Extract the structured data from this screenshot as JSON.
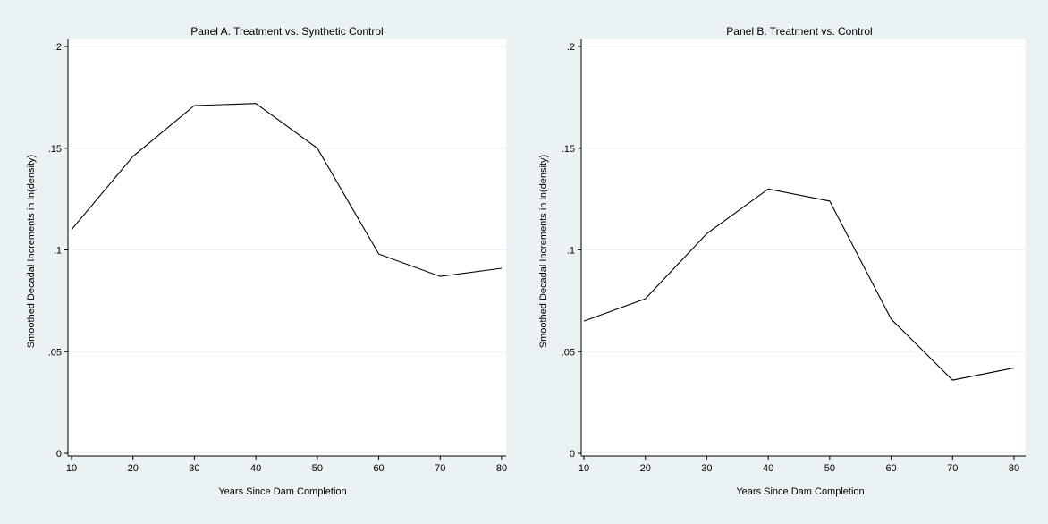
{
  "chart_data": [
    {
      "type": "line",
      "title": "Panel A. Treatment vs. Synthetic Control",
      "xlabel": "Years Since Dam Completion",
      "ylabel": "Smoothed Decadal Increments in ln(density)",
      "x": [
        10,
        20,
        30,
        40,
        50,
        60,
        70,
        80
      ],
      "series": [
        {
          "values": [
            0.11,
            0.146,
            0.171,
            0.172,
            0.15,
            0.098,
            0.087,
            0.091
          ]
        }
      ],
      "xlim": [
        10,
        80
      ],
      "ylim": [
        0,
        0.2
      ],
      "xticks": [
        "10",
        "20",
        "30",
        "40",
        "50",
        "60",
        "70",
        "80"
      ],
      "yticks": [
        "0",
        ".05",
        ".1",
        ".15",
        ".2"
      ],
      "ytick_values": [
        0,
        0.05,
        0.1,
        0.15,
        0.2
      ],
      "grid": true
    },
    {
      "type": "line",
      "title": "Panel B. Treatment vs. Control",
      "xlabel": "Years Since Dam Completion",
      "ylabel": "Smoothed Decadal Increments in ln(density)",
      "x": [
        10,
        20,
        30,
        40,
        50,
        60,
        70,
        80
      ],
      "series": [
        {
          "values": [
            0.065,
            0.076,
            0.108,
            0.13,
            0.124,
            0.066,
            0.036,
            0.042
          ]
        }
      ],
      "xlim": [
        10,
        80
      ],
      "ylim": [
        0,
        0.2
      ],
      "xticks": [
        "10",
        "20",
        "30",
        "40",
        "50",
        "60",
        "70",
        "80"
      ],
      "yticks": [
        "0",
        ".05",
        ".1",
        ".15",
        ".2"
      ],
      "ytick_values": [
        0,
        0.05,
        0.1,
        0.15,
        0.2
      ],
      "grid": true
    }
  ]
}
